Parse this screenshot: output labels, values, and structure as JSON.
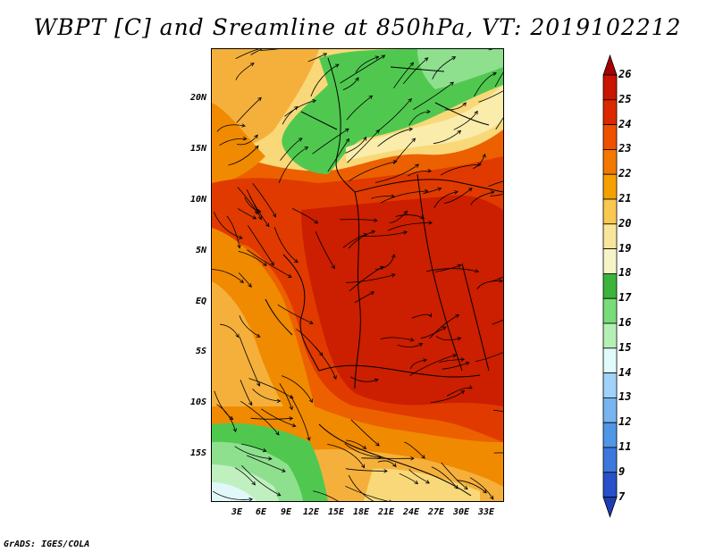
{
  "title": "WBPT [C] and Sreamline at 850hPa, VT: 2019102212",
  "credit": "GrADS: IGES/COLA",
  "lat_labels": [
    "20N",
    "15N",
    "10N",
    "5N",
    "EQ",
    "5S",
    "10S",
    "15S"
  ],
  "lon_labels": [
    "3E",
    "6E",
    "9E",
    "12E",
    "15E",
    "18E",
    "21E",
    "24E",
    "27E",
    "30E",
    "33E"
  ],
  "colorbar": {
    "labels": [
      "26",
      "25",
      "24",
      "23",
      "22",
      "21",
      "20",
      "19",
      "18",
      "17",
      "16",
      "15",
      "14",
      "13",
      "12",
      "11",
      "9",
      "7"
    ],
    "colors": [
      "#a50000",
      "#c81400",
      "#dc2800",
      "#ee5000",
      "#f27800",
      "#f5a000",
      "#f8c850",
      "#fae69a",
      "#f5f5c8",
      "#3cb43c",
      "#78dc78",
      "#b4f0b4",
      "#e1fafa",
      "#a0d2fa",
      "#78b4f0",
      "#5096e6",
      "#3c78dc",
      "#2850c8",
      "#1e3cb4"
    ]
  },
  "map": {
    "colors": {
      "dark_red": "#cc1e00",
      "red": "#e03a00",
      "orange_red": "#ec6000",
      "orange": "#f08a00",
      "light_orange": "#f5b03c",
      "yellow": "#f8d878",
      "pale_yellow": "#faecaa",
      "green": "#50c850",
      "light_green": "#8ee08e",
      "pale_green": "#c0f0c0",
      "cyan_pale": "#e0f8fa"
    }
  }
}
